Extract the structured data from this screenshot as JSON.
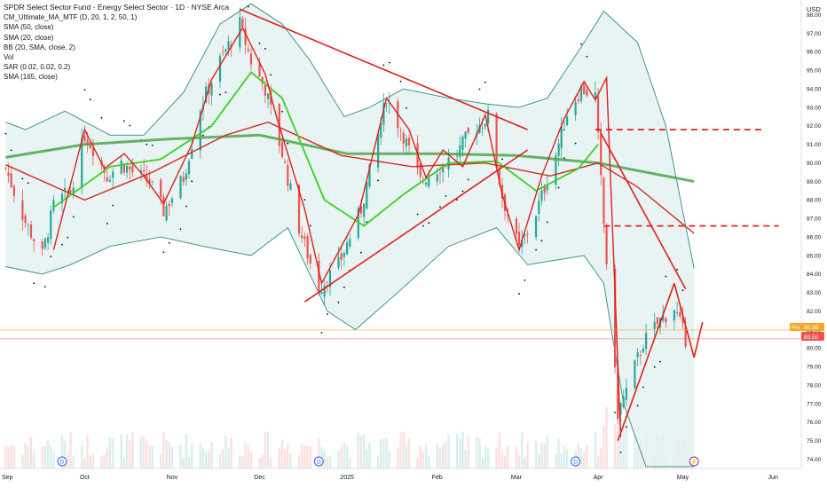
{
  "header": {
    "title": "SPDR Select Sector Fund - Energy Select Sector · 1D · NYSE Arca",
    "indicators": [
      "CM_Ultimate_MA_MTF (D, 20, 1, 2, 50, 1)",
      "SMA (50, close)",
      "SMA (20, close)",
      "BB (20, SMA, close, 2)",
      "Vol",
      "SAR (0.02, 0.02, 0.2)",
      "SMA (165, close)"
    ]
  },
  "axis": {
    "currency": "USD"
  },
  "price_labels": {
    "pre_tag": "Pre",
    "pre_value": "80.98",
    "last_value": "80.50"
  },
  "colors": {
    "up": "#26a69a",
    "down": "#ef5350",
    "trend": "#e0201b",
    "band_fill": "#e2f1f0",
    "band_line": "#2f8a80",
    "sma20": "#3ad024",
    "sma50": "#d42a1f",
    "sma165": "#4fa54a"
  },
  "event_markers": [
    {
      "label": "D",
      "kind": "dividend",
      "date": "2024-09-23"
    },
    {
      "label": "D",
      "kind": "dividend",
      "date": "2024-12-23"
    },
    {
      "label": "D",
      "kind": "dividend",
      "date": "2025-03-24"
    },
    {
      "label": "⚡",
      "kind": "earnings",
      "date": "2025-05-05"
    }
  ],
  "chart_data": {
    "type": "candlestick",
    "x_axis": {
      "tick_labels": [
        "Sep",
        "Oct",
        "Nov",
        "Dec",
        "2025",
        "Feb",
        "Mar",
        "Apr",
        "May",
        "Jun"
      ],
      "tick_dates": [
        "2024-09-03",
        "2024-10-01",
        "2024-11-01",
        "2024-12-02",
        "2025-01-02",
        "2025-02-03",
        "2025-03-03",
        "2025-04-01",
        "2025-05-01",
        "2025-06-02"
      ],
      "range": [
        "2024-09-01",
        "2025-06-12"
      ]
    },
    "y_axis": {
      "range": [
        73.5,
        98.8
      ],
      "tick_labels": [
        "74.00",
        "75.00",
        "76.00",
        "77.00",
        "78.00",
        "79.00",
        "80.00",
        "81.00",
        "82.00",
        "83.00",
        "84.00",
        "85.00",
        "86.00",
        "87.00",
        "88.00",
        "89.00",
        "90.00",
        "91.00",
        "92.00",
        "93.00",
        "94.00",
        "95.00",
        "96.00",
        "97.00",
        "98.00"
      ]
    },
    "series": [
      {
        "kind": "price-waypoints",
        "points": [
          [
            "2024-09-03",
            89.7
          ],
          [
            "2024-09-10",
            86.8
          ],
          [
            "2024-09-16",
            85.0
          ],
          [
            "2024-09-20",
            87.7
          ],
          [
            "2024-09-26",
            88.5
          ],
          [
            "2024-10-01",
            91.5
          ],
          [
            "2024-10-04",
            90.8
          ],
          [
            "2024-10-09",
            89.3
          ],
          [
            "2024-10-14",
            90.0
          ],
          [
            "2024-10-18",
            89.5
          ],
          [
            "2024-10-24",
            89.0
          ],
          [
            "2024-10-29",
            87.4
          ],
          [
            "2024-11-05",
            89.2
          ],
          [
            "2024-11-11",
            93.0
          ],
          [
            "2024-11-18",
            95.5
          ],
          [
            "2024-11-25",
            97.5
          ],
          [
            "2024-11-29",
            95.5
          ],
          [
            "2024-12-04",
            94.0
          ],
          [
            "2024-12-10",
            90.5
          ],
          [
            "2024-12-16",
            86.5
          ],
          [
            "2024-12-23",
            83.2
          ],
          [
            "2024-12-30",
            84.5
          ],
          [
            "2025-01-07",
            87.5
          ],
          [
            "2025-01-13",
            91.5
          ],
          [
            "2025-01-16",
            93.5
          ],
          [
            "2025-01-22",
            91.5
          ],
          [
            "2025-01-28",
            89.0
          ],
          [
            "2025-02-04",
            89.8
          ],
          [
            "2025-02-10",
            90.5
          ],
          [
            "2025-02-14",
            91.5
          ],
          [
            "2025-02-21",
            92.5
          ],
          [
            "2025-02-26",
            88.2
          ],
          [
            "2025-03-04",
            85.3
          ],
          [
            "2025-03-10",
            87.3
          ],
          [
            "2025-03-17",
            90.5
          ],
          [
            "2025-03-21",
            92.7
          ],
          [
            "2025-03-26",
            94.0
          ],
          [
            "2025-03-31",
            93.6
          ],
          [
            "2025-04-03",
            86.7
          ],
          [
            "2025-04-08",
            76.5
          ],
          [
            "2025-04-11",
            77.7
          ],
          [
            "2025-04-17",
            80.3
          ],
          [
            "2025-04-23",
            81.5
          ],
          [
            "2025-04-28",
            82.2
          ],
          [
            "2025-05-02",
            80.5
          ]
        ]
      },
      {
        "kind": "moving-averages",
        "sma20": [
          [
            "2024-09-20",
            87.6
          ],
          [
            "2024-10-10",
            89.8
          ],
          [
            "2024-10-28",
            90.2
          ],
          [
            "2024-11-15",
            92.0
          ],
          [
            "2024-11-29",
            94.9
          ],
          [
            "2024-12-10",
            93.5
          ],
          [
            "2024-12-25",
            88.0
          ],
          [
            "2025-01-08",
            86.6
          ],
          [
            "2025-01-22",
            88.3
          ],
          [
            "2025-02-07",
            90.0
          ],
          [
            "2025-02-24",
            90.1
          ],
          [
            "2025-03-10",
            88.5
          ],
          [
            "2025-03-25",
            89.7
          ],
          [
            "2025-04-01",
            91.0
          ]
        ],
        "sma50": [
          [
            "2024-09-03",
            89.9
          ],
          [
            "2024-10-01",
            88.0
          ],
          [
            "2024-10-25",
            89.5
          ],
          [
            "2024-11-20",
            91.5
          ],
          [
            "2024-12-05",
            92.2
          ],
          [
            "2024-12-31",
            90.4
          ],
          [
            "2025-01-25",
            89.8
          ],
          [
            "2025-02-20",
            90.0
          ],
          [
            "2025-03-15",
            89.3
          ],
          [
            "2025-04-01",
            90.0
          ],
          [
            "2025-04-15",
            88.7
          ],
          [
            "2025-05-05",
            86.2
          ]
        ],
        "sma165": [
          [
            "2024-09-03",
            90.3
          ],
          [
            "2024-10-01",
            91.0
          ],
          [
            "2024-11-01",
            91.3
          ],
          [
            "2024-12-02",
            91.5
          ],
          [
            "2025-01-02",
            90.5
          ],
          [
            "2025-02-03",
            90.5
          ],
          [
            "2025-03-03",
            90.4
          ],
          [
            "2025-04-01",
            90.0
          ],
          [
            "2025-05-05",
            89.0
          ]
        ]
      },
      {
        "kind": "bollinger-bands",
        "upper": [
          [
            "2024-09-03",
            92.2
          ],
          [
            "2024-09-10",
            91.8
          ],
          [
            "2024-09-24",
            92.8
          ],
          [
            "2024-10-10",
            91.5
          ],
          [
            "2024-10-22",
            91.5
          ],
          [
            "2024-11-05",
            93.8
          ],
          [
            "2024-11-18",
            97.5
          ],
          [
            "2024-11-29",
            98.6
          ],
          [
            "2024-12-10",
            97.5
          ],
          [
            "2024-12-20",
            95.5
          ],
          [
            "2025-01-01",
            92.5
          ],
          [
            "2025-01-10",
            93.0
          ],
          [
            "2025-01-22",
            94.0
          ],
          [
            "2025-02-07",
            93.5
          ],
          [
            "2025-02-20",
            93.2
          ],
          [
            "2025-03-04",
            93.0
          ],
          [
            "2025-03-14",
            93.5
          ],
          [
            "2025-03-27",
            96.5
          ],
          [
            "2025-04-03",
            98.2
          ],
          [
            "2025-04-15",
            96.5
          ],
          [
            "2025-04-25",
            92.0
          ],
          [
            "2025-05-05",
            84.3
          ]
        ],
        "lower": [
          [
            "2024-09-03",
            84.4
          ],
          [
            "2024-09-16",
            84.0
          ],
          [
            "2024-09-26",
            84.5
          ],
          [
            "2024-10-10",
            85.5
          ],
          [
            "2024-10-28",
            86.0
          ],
          [
            "2024-11-12",
            85.5
          ],
          [
            "2024-11-29",
            85.0
          ],
          [
            "2024-12-12",
            86.5
          ],
          [
            "2024-12-26",
            82.0
          ],
          [
            "2025-01-05",
            81.0
          ],
          [
            "2025-01-20",
            83.0
          ],
          [
            "2025-02-07",
            85.5
          ],
          [
            "2025-02-24",
            86.5
          ],
          [
            "2025-03-07",
            84.5
          ],
          [
            "2025-03-27",
            85.0
          ],
          [
            "2025-04-03",
            83.5
          ],
          [
            "2025-04-10",
            77.0
          ],
          [
            "2025-04-18",
            73.6
          ],
          [
            "2025-05-05",
            73.6
          ]
        ]
      },
      {
        "kind": "annotation-lines",
        "trendlines": [
          [
            [
              "2024-11-25",
              98.3
            ],
            [
              "2025-03-07",
              91.8
            ]
          ],
          [
            [
              "2024-12-18",
              82.5
            ],
            [
              "2025-03-07",
              90.7
            ]
          ],
          [
            [
              "2025-04-02",
              91.6
            ],
            [
              "2025-05-02",
              83.2
            ]
          ],
          [
            [
              "2025-04-08",
              75.0
            ],
            [
              "2025-04-28",
              83.5
            ]
          ],
          [
            [
              "2025-04-28",
              83.5
            ],
            [
              "2025-05-05",
              79.5
            ]
          ],
          [
            [
              "2025-05-05",
              79.5
            ],
            [
              "2025-05-08",
              81.4
            ]
          ]
        ],
        "projection_path": [
          [
            "2024-09-20",
            85.3
          ],
          [
            "2024-10-01",
            91.8
          ],
          [
            "2024-10-08",
            89.7
          ],
          [
            "2024-10-15",
            90.5
          ],
          [
            "2024-10-22",
            89.3
          ],
          [
            "2024-10-29",
            87.8
          ],
          [
            "2024-11-08",
            91.0
          ],
          [
            "2024-11-15",
            94.5
          ],
          [
            "2024-11-26",
            97.3
          ],
          [
            "2024-12-04",
            94.8
          ],
          [
            "2024-12-08",
            92.5
          ],
          [
            "2024-12-18",
            87.5
          ],
          [
            "2024-12-24",
            83.5
          ],
          [
            "2025-01-06",
            87.2
          ],
          [
            "2025-01-16",
            93.5
          ],
          [
            "2025-01-24",
            91.8
          ],
          [
            "2025-01-30",
            89.2
          ],
          [
            "2025-02-05",
            90.7
          ],
          [
            "2025-02-12",
            89.8
          ],
          [
            "2025-02-20",
            92.6
          ],
          [
            "2025-02-26",
            88.3
          ],
          [
            "2025-03-04",
            85.3
          ],
          [
            "2025-03-12",
            89.3
          ],
          [
            "2025-03-20",
            92.4
          ],
          [
            "2025-03-27",
            94.4
          ],
          [
            "2025-03-31",
            93.4
          ],
          [
            "2025-04-04",
            94.6
          ],
          [
            "2025-04-09",
            75.2
          ]
        ],
        "dashed_levels": [
          {
            "price": 91.8,
            "from": "2025-03-31",
            "to": "2025-05-30"
          },
          {
            "price": 86.6,
            "from": "2025-04-03",
            "to": "2025-06-04"
          },
          {
            "price": 73.3,
            "from": "2024-09-01",
            "to": "2025-06-12"
          }
        ]
      }
    ]
  }
}
